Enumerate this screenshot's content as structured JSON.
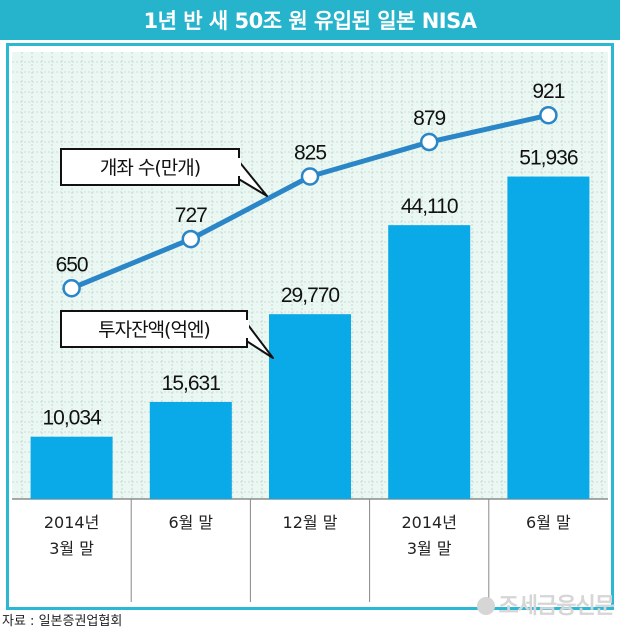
{
  "title": "1년 반 새 50조 원 유입된 일본 NISA",
  "source": "자료 : 일본증권업협회",
  "watermark": "조세금융신문",
  "colors": {
    "accent": "#26b3cc",
    "bar": "#0aa9e8",
    "line": "#2a86c7",
    "panel_bg": "#eaf7f2",
    "grid": "#a9c7bb"
  },
  "chart_data": {
    "type": "bar",
    "title": "1년 반 새 50조 원 유입된 일본 NISA",
    "categories": [
      [
        "2014년",
        "3월 말"
      ],
      [
        "6월 말"
      ],
      [
        "12월 말"
      ],
      [
        "2014년",
        "3월 말"
      ],
      [
        "6월 말"
      ]
    ],
    "series": [
      {
        "name": "투자잔액(억엔)",
        "type": "bar",
        "values": [
          10034,
          15631,
          29770,
          44110,
          51936
        ],
        "labels": [
          "10,034",
          "15,631",
          "29,770",
          "44,110",
          "51,936"
        ],
        "ylim": [
          0,
          72000
        ]
      },
      {
        "name": "개좌 수(만개)",
        "type": "line",
        "values": [
          650,
          727,
          825,
          879,
          921
        ],
        "labels": [
          "650",
          "727",
          "825",
          "879",
          "921"
        ],
        "ylim": [
          320,
          1020
        ]
      }
    ],
    "legend_callouts": [
      "개좌 수(만개)",
      "투자잔액(억엔)"
    ],
    "grid": true
  }
}
